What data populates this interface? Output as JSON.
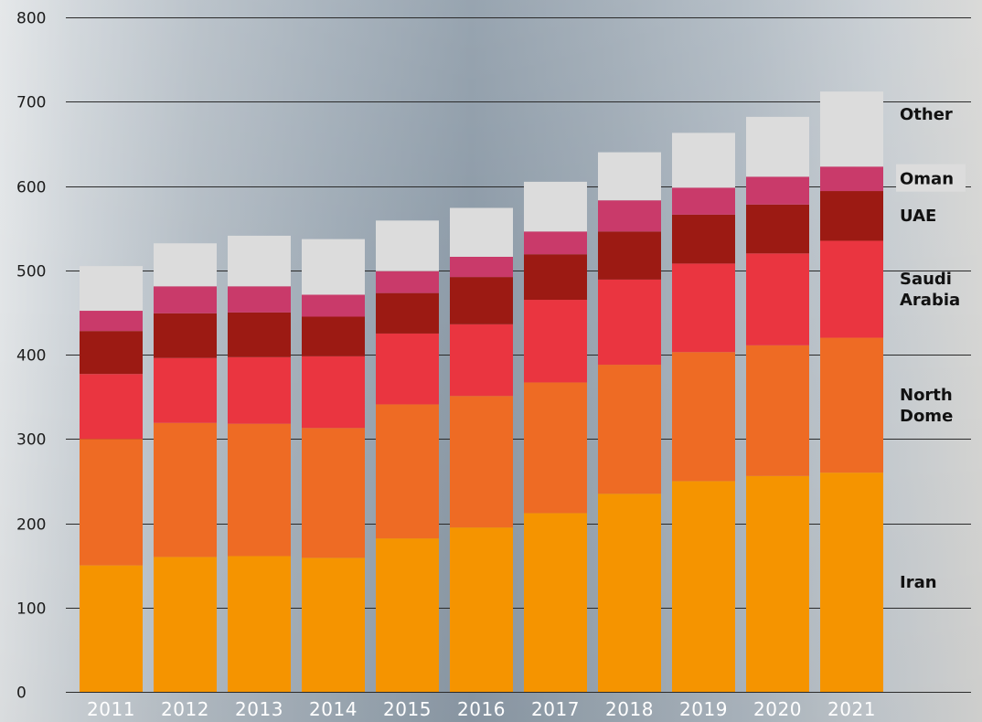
{
  "chart_data": {
    "type": "bar",
    "stacked": true,
    "title": "",
    "xlabel": "",
    "ylabel": "",
    "ylim": [
      0,
      800
    ],
    "yticks": [
      0,
      100,
      200,
      300,
      400,
      500,
      600,
      700,
      800
    ],
    "grid": true,
    "legend": "right, labels aligned with the final bar",
    "categories": [
      "2011",
      "2012",
      "2013",
      "2014",
      "2015",
      "2016",
      "2017",
      "2018",
      "2019",
      "2020",
      "2021"
    ],
    "series": [
      {
        "name": "Iran",
        "color": "#f59400",
        "values": [
          150,
          160,
          161,
          159,
          182,
          195,
          212,
          235,
          250,
          256,
          260
        ]
      },
      {
        "name": "North Dome",
        "color": "#ee6b24",
        "values": [
          150,
          159,
          157,
          154,
          159,
          156,
          155,
          153,
          153,
          155,
          160
        ]
      },
      {
        "name": "Saudi Arabia",
        "color": "#ea3540",
        "values": [
          77,
          77,
          79,
          85,
          84,
          85,
          98,
          101,
          105,
          109,
          115
        ]
      },
      {
        "name": "UAE",
        "color": "#9c1a13",
        "values": [
          51,
          53,
          53,
          47,
          48,
          56,
          54,
          57,
          58,
          58,
          59
        ]
      },
      {
        "name": "Oman",
        "color": "#c93a6a",
        "values": [
          24,
          32,
          31,
          26,
          26,
          24,
          27,
          37,
          32,
          33,
          29
        ]
      },
      {
        "name": "Other",
        "color": "#dcdcdc",
        "values": [
          53,
          51,
          60,
          66,
          60,
          58,
          59,
          57,
          65,
          71,
          89
        ]
      }
    ]
  }
}
